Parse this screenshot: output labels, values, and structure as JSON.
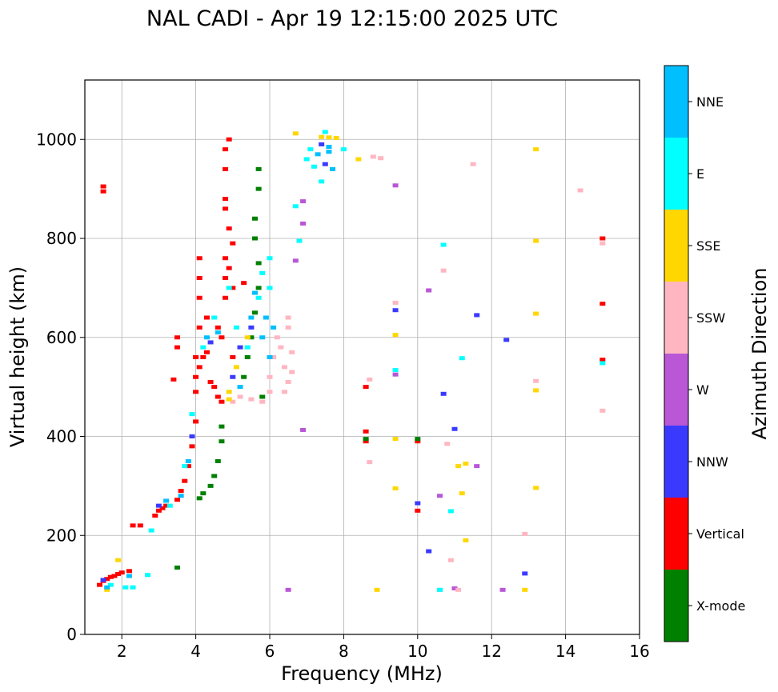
{
  "chart_data": {
    "type": "scatter",
    "title": "NAL CADI - Apr 19 12:15:00 2025 UTC",
    "xlabel": "Frequency (MHz)",
    "ylabel": "Virtual height (km)",
    "xlim": [
      1,
      16
    ],
    "ylim": [
      0,
      1120
    ],
    "xticks": [
      2,
      4,
      6,
      8,
      10,
      12,
      14,
      16
    ],
    "yticks": [
      0,
      200,
      400,
      600,
      800,
      1000
    ],
    "grid": true,
    "colorbar": {
      "label": "Azimuth Direction",
      "categories": [
        {
          "name": "X-mode",
          "color": "#008000"
        },
        {
          "name": "Vertical",
          "color": "#ff0000"
        },
        {
          "name": "NNW",
          "color": "#3a3aff"
        },
        {
          "name": "W",
          "color": "#b957d6"
        },
        {
          "name": "SSW",
          "color": "#ffb6c1"
        },
        {
          "name": "SSE",
          "color": "#ffd700"
        },
        {
          "name": "E",
          "color": "#00ffff"
        },
        {
          "name": "NNE",
          "color": "#00bfff"
        }
      ]
    },
    "series": [
      {
        "name": "Vertical",
        "color": "#ff0000",
        "points": [
          [
            1.5,
            895
          ],
          [
            1.5,
            905
          ],
          [
            1.4,
            100
          ],
          [
            1.5,
            108
          ],
          [
            1.6,
            112
          ],
          [
            1.7,
            116
          ],
          [
            1.8,
            118
          ],
          [
            1.9,
            122
          ],
          [
            2.0,
            125
          ],
          [
            2.2,
            128
          ],
          [
            2.3,
            220
          ],
          [
            2.5,
            220
          ],
          [
            2.9,
            240
          ],
          [
            3.0,
            250
          ],
          [
            3.1,
            255
          ],
          [
            3.2,
            260
          ],
          [
            3.5,
            272
          ],
          [
            3.6,
            290
          ],
          [
            3.7,
            310
          ],
          [
            3.8,
            340
          ],
          [
            3.9,
            380
          ],
          [
            4.0,
            430
          ],
          [
            4.0,
            490
          ],
          [
            4.0,
            520
          ],
          [
            4.0,
            560
          ],
          [
            3.5,
            580
          ],
          [
            3.5,
            600
          ],
          [
            3.4,
            515
          ],
          [
            4.1,
            540
          ],
          [
            4.2,
            560
          ],
          [
            4.3,
            570
          ],
          [
            4.4,
            510
          ],
          [
            4.5,
            500
          ],
          [
            4.6,
            480
          ],
          [
            4.7,
            470
          ],
          [
            4.1,
            620
          ],
          [
            4.1,
            680
          ],
          [
            4.1,
            720
          ],
          [
            4.1,
            760
          ],
          [
            4.3,
            640
          ],
          [
            4.6,
            620
          ],
          [
            4.8,
            680
          ],
          [
            4.8,
            720
          ],
          [
            4.8,
            760
          ],
          [
            4.9,
            740
          ],
          [
            5.0,
            700
          ],
          [
            4.8,
            880
          ],
          [
            4.8,
            860
          ],
          [
            4.9,
            820
          ],
          [
            5.0,
            790
          ],
          [
            4.8,
            940
          ],
          [
            4.8,
            980
          ],
          [
            4.9,
            1000
          ],
          [
            4.7,
            600
          ],
          [
            5.0,
            560
          ],
          [
            5.3,
            710
          ],
          [
            8.6,
            500
          ],
          [
            8.6,
            390
          ],
          [
            8.6,
            410
          ],
          [
            10.0,
            390
          ],
          [
            10.0,
            250
          ],
          [
            15.0,
            800
          ],
          [
            15.0,
            668
          ],
          [
            15.0,
            555
          ]
        ]
      },
      {
        "name": "X-mode",
        "color": "#008000",
        "points": [
          [
            3.5,
            135
          ],
          [
            4.1,
            275
          ],
          [
            4.2,
            285
          ],
          [
            4.4,
            300
          ],
          [
            4.5,
            320
          ],
          [
            4.6,
            350
          ],
          [
            4.7,
            390
          ],
          [
            4.7,
            420
          ],
          [
            5.4,
            560
          ],
          [
            5.5,
            600
          ],
          [
            5.6,
            650
          ],
          [
            5.7,
            700
          ],
          [
            5.7,
            750
          ],
          [
            5.6,
            800
          ],
          [
            5.6,
            840
          ],
          [
            5.7,
            900
          ],
          [
            5.7,
            940
          ],
          [
            5.3,
            520
          ],
          [
            5.8,
            480
          ],
          [
            8.6,
            395
          ],
          [
            10.0,
            395
          ]
        ]
      },
      {
        "name": "NNW",
        "color": "#3a3aff",
        "points": [
          [
            1.5,
            110
          ],
          [
            3.0,
            260
          ],
          [
            3.9,
            400
          ],
          [
            4.4,
            590
          ],
          [
            5.0,
            520
          ],
          [
            5.2,
            580
          ],
          [
            5.5,
            620
          ],
          [
            7.4,
            990
          ],
          [
            7.5,
            950
          ],
          [
            9.4,
            655
          ],
          [
            10.0,
            265
          ],
          [
            10.3,
            168
          ],
          [
            10.7,
            486
          ],
          [
            11.0,
            415
          ],
          [
            11.6,
            645
          ],
          [
            12.4,
            595
          ],
          [
            12.9,
            123
          ]
        ]
      },
      {
        "name": "W",
        "color": "#b957d6",
        "points": [
          [
            6.5,
            90
          ],
          [
            6.7,
            755
          ],
          [
            6.9,
            875
          ],
          [
            6.9,
            830
          ],
          [
            6.9,
            413
          ],
          [
            9.4,
            907
          ],
          [
            9.4,
            525
          ],
          [
            10.3,
            695
          ],
          [
            10.6,
            280
          ],
          [
            11.0,
            93
          ],
          [
            11.6,
            340
          ],
          [
            12.3,
            90
          ]
        ]
      },
      {
        "name": "SSW",
        "color": "#ffb6c1",
        "points": [
          [
            5.0,
            470
          ],
          [
            5.2,
            480
          ],
          [
            5.5,
            475
          ],
          [
            5.8,
            470
          ],
          [
            6.0,
            520
          ],
          [
            6.1,
            560
          ],
          [
            6.2,
            600
          ],
          [
            6.3,
            580
          ],
          [
            6.4,
            540
          ],
          [
            6.5,
            510
          ],
          [
            6.4,
            490
          ],
          [
            6.5,
            620
          ],
          [
            6.5,
            640
          ],
          [
            6.6,
            570
          ],
          [
            6.6,
            530
          ],
          [
            6.0,
            490
          ],
          [
            8.7,
            348
          ],
          [
            8.7,
            515
          ],
          [
            8.8,
            965
          ],
          [
            9.0,
            962
          ],
          [
            9.4,
            670
          ],
          [
            10.7,
            735
          ],
          [
            10.8,
            385
          ],
          [
            10.9,
            150
          ],
          [
            11.1,
            90
          ],
          [
            11.5,
            950
          ],
          [
            12.9,
            203
          ],
          [
            13.2,
            512
          ],
          [
            14.4,
            897
          ],
          [
            15.0,
            452
          ],
          [
            15.0,
            790
          ],
          [
            10.6,
            90
          ]
        ]
      },
      {
        "name": "SSE",
        "color": "#ffd700",
        "points": [
          [
            1.6,
            90
          ],
          [
            1.9,
            150
          ],
          [
            4.9,
            475
          ],
          [
            4.9,
            490
          ],
          [
            5.1,
            540
          ],
          [
            5.4,
            600
          ],
          [
            6.7,
            1012
          ],
          [
            7.4,
            1005
          ],
          [
            7.6,
            1004
          ],
          [
            7.8,
            1003
          ],
          [
            8.4,
            960
          ],
          [
            8.9,
            90
          ],
          [
            9.4,
            605
          ],
          [
            9.4,
            395
          ],
          [
            9.4,
            295
          ],
          [
            11.1,
            340
          ],
          [
            11.3,
            345
          ],
          [
            11.3,
            190
          ],
          [
            11.2,
            285
          ],
          [
            12.9,
            90
          ],
          [
            13.2,
            980
          ],
          [
            13.2,
            795
          ],
          [
            13.2,
            648
          ],
          [
            13.2,
            493
          ],
          [
            13.2,
            296
          ]
        ]
      },
      {
        "name": "E",
        "color": "#00ffff",
        "points": [
          [
            1.7,
            100
          ],
          [
            2.1,
            95
          ],
          [
            2.3,
            95
          ],
          [
            2.7,
            120
          ],
          [
            2.8,
            210
          ],
          [
            3.3,
            260
          ],
          [
            3.7,
            340
          ],
          [
            3.9,
            445
          ],
          [
            4.2,
            580
          ],
          [
            4.5,
            640
          ],
          [
            4.9,
            700
          ],
          [
            5.1,
            620
          ],
          [
            5.4,
            580
          ],
          [
            5.7,
            680
          ],
          [
            5.8,
            730
          ],
          [
            6.0,
            760
          ],
          [
            6.0,
            700
          ],
          [
            6.7,
            865
          ],
          [
            6.8,
            795
          ],
          [
            7.1,
            980
          ],
          [
            7.2,
            945
          ],
          [
            7.4,
            915
          ],
          [
            7.5,
            1015
          ],
          [
            8.0,
            980
          ],
          [
            9.4,
            534
          ],
          [
            10.6,
            90
          ],
          [
            10.7,
            787
          ],
          [
            10.9,
            249
          ],
          [
            11.2,
            558
          ],
          [
            15.0,
            548
          ],
          [
            7.0,
            960
          ]
        ]
      },
      {
        "name": "NNE",
        "color": "#00bfff",
        "points": [
          [
            1.6,
            95
          ],
          [
            2.2,
            118
          ],
          [
            3.2,
            270
          ],
          [
            3.6,
            280
          ],
          [
            3.8,
            350
          ],
          [
            4.3,
            600
          ],
          [
            4.6,
            610
          ],
          [
            5.2,
            500
          ],
          [
            5.5,
            640
          ],
          [
            5.6,
            690
          ],
          [
            5.8,
            600
          ],
          [
            5.9,
            640
          ],
          [
            6.0,
            560
          ],
          [
            6.1,
            620
          ],
          [
            7.3,
            970
          ],
          [
            7.6,
            975
          ],
          [
            7.7,
            940
          ],
          [
            7.6,
            985
          ]
        ]
      }
    ]
  }
}
